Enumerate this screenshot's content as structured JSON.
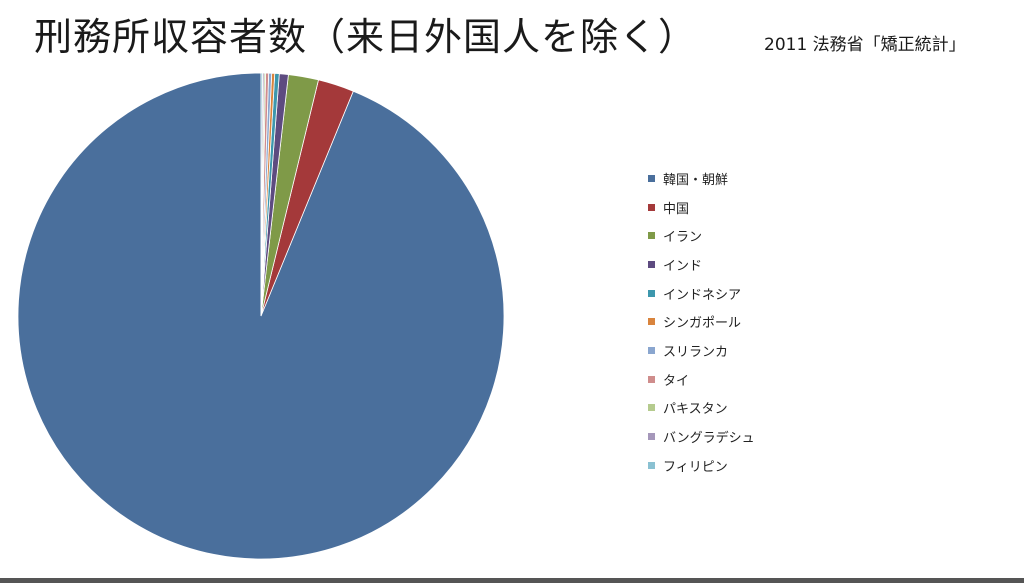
{
  "title": "刑務所収容者数（来日外国人を除く）",
  "source": "2011 法務省「矯正統計」",
  "chart_data": {
    "type": "pie",
    "title": "刑務所収容者数（来日外国人を除く）",
    "start_angle_deg": 0,
    "direction": "counterclockwise",
    "legend_position": "right",
    "series": [
      {
        "name": "韓国・朝鮮",
        "value": 93.8,
        "color": "#4a6f9c"
      },
      {
        "name": "中国",
        "value": 2.4,
        "color": "#a4393a"
      },
      {
        "name": "イラン",
        "value": 2.0,
        "color": "#7f9a48"
      },
      {
        "name": "インド",
        "value": 0.6,
        "color": "#5d4b80"
      },
      {
        "name": "インドネシア",
        "value": 0.3,
        "color": "#3d97ad"
      },
      {
        "name": "シンガポール",
        "value": 0.2,
        "color": "#d9843d"
      },
      {
        "name": "スリランカ",
        "value": 0.2,
        "color": "#8aa6cf"
      },
      {
        "name": "タイ",
        "value": 0.2,
        "color": "#cf8d8c"
      },
      {
        "name": "パキスタン",
        "value": 0.1,
        "color": "#b5cb8e"
      },
      {
        "name": "バングラデシュ",
        "value": 0.1,
        "color": "#a597ba"
      },
      {
        "name": "フィリピン",
        "value": 0.1,
        "color": "#8ac1d2"
      }
    ]
  }
}
